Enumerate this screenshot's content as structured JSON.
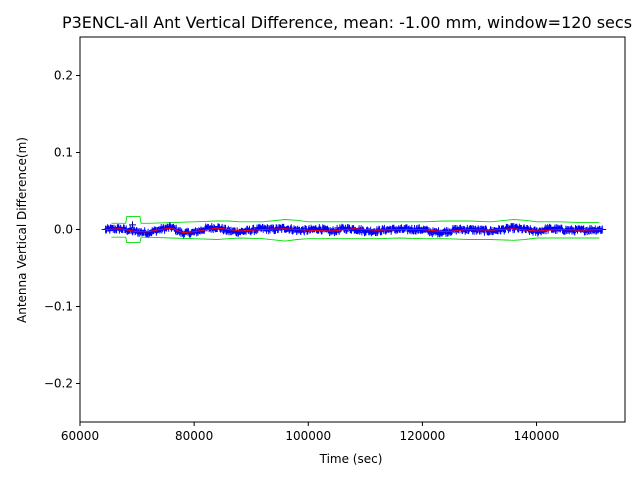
{
  "chart_data": {
    "type": "line",
    "title": "P3ENCL-all Ant Vertical Difference, mean: -1.00 mm, window=120 secs",
    "xlabel": "Time (sec)",
    "ylabel": "Antenna Vertical Difference(m)",
    "xlim": [
      60000,
      155500
    ],
    "ylim": [
      -0.25,
      0.25
    ],
    "xticks": [
      60000,
      80000,
      100000,
      120000,
      140000
    ],
    "xtick_labels": [
      "60000",
      "80000",
      "100000",
      "120000",
      "140000"
    ],
    "yticks": [
      0.2,
      0.1,
      0.0,
      -0.1,
      -0.2
    ],
    "ytick_labels": [
      "0.2",
      "0.1",
      "0.0",
      "−0.1",
      "−0.2"
    ],
    "grid": false,
    "legend": "none",
    "series": [
      {
        "kind": "measurements",
        "color": "#0000ff",
        "marker": "+",
        "x_range": [
          64500,
          151500
        ],
        "values_approx": {
          "x": [
            64500,
            67000,
            70000,
            72000,
            74000,
            76000,
            78000,
            80000,
            82000,
            84000,
            86000,
            88000,
            90000,
            92000,
            94000,
            96000,
            98000,
            100000,
            102000,
            104000,
            106000,
            108000,
            110000,
            112000,
            114000,
            116000,
            118000,
            120000,
            122000,
            124000,
            126000,
            128000,
            130000,
            132000,
            134000,
            136000,
            138000,
            140000,
            142000,
            144000,
            146000,
            148000,
            150000,
            151500
          ],
          "y": [
            0.0,
            0.001,
            -0.003,
            -0.004,
            0.0,
            0.003,
            -0.005,
            -0.004,
            0.001,
            0.003,
            -0.002,
            -0.003,
            -0.001,
            0.001,
            0.0,
            0.002,
            -0.001,
            -0.001,
            0.001,
            -0.003,
            0.001,
            0.001,
            -0.002,
            -0.002,
            0.0,
            0.0,
            0.0,
            0.0,
            -0.004,
            -0.003,
            0.0,
            0.0,
            -0.001,
            -0.002,
            0.0,
            0.002,
            0.0,
            -0.003,
            0.001,
            0.0,
            -0.001,
            -0.001,
            0.0,
            0.0
          ]
        },
        "outliers": [
          {
            "x": 69200,
            "y": 0.006
          }
        ]
      },
      {
        "kind": "moving-mean",
        "color": "#ff0000",
        "x": [
          64500,
          67000,
          70000,
          72000,
          74000,
          76000,
          78000,
          80000,
          84000,
          88000,
          92000,
          96000,
          100000,
          104000,
          108000,
          112000,
          116000,
          120000,
          124000,
          128000,
          132000,
          136000,
          140000,
          144000,
          148000,
          151500
        ],
        "y": [
          0.0,
          0.001,
          -0.003,
          -0.003,
          0.0,
          0.002,
          -0.004,
          -0.003,
          0.002,
          -0.002,
          0.0,
          0.001,
          -0.001,
          -0.002,
          0.001,
          -0.001,
          0.0,
          0.0,
          -0.003,
          0.0,
          -0.001,
          0.001,
          -0.002,
          0.0,
          -0.001,
          0.0
        ]
      },
      {
        "kind": "upper-envelope",
        "color": "#00e000",
        "x": [
          65500,
          68000,
          68200,
          70500,
          70700,
          72000,
          76000,
          80000,
          84000,
          86000,
          88000,
          92000,
          96000,
          98000,
          100000,
          104000,
          108000,
          112000,
          116000,
          120000,
          124000,
          128000,
          132000,
          136000,
          138000,
          140000,
          144000,
          148000,
          151000
        ],
        "y": [
          0.008,
          0.008,
          0.017,
          0.017,
          0.008,
          0.008,
          0.009,
          0.01,
          0.011,
          0.011,
          0.01,
          0.01,
          0.013,
          0.012,
          0.01,
          0.01,
          0.01,
          0.01,
          0.01,
          0.01,
          0.011,
          0.011,
          0.01,
          0.013,
          0.012,
          0.01,
          0.01,
          0.009,
          0.009
        ]
      },
      {
        "kind": "lower-envelope",
        "color": "#00e000",
        "x": [
          65500,
          68000,
          68200,
          70500,
          70700,
          72000,
          76000,
          80000,
          84000,
          86000,
          88000,
          92000,
          96000,
          98000,
          100000,
          104000,
          108000,
          112000,
          116000,
          120000,
          124000,
          128000,
          132000,
          136000,
          138000,
          140000,
          144000,
          148000,
          151000
        ],
        "y": [
          -0.01,
          -0.01,
          -0.017,
          -0.017,
          -0.01,
          -0.01,
          -0.011,
          -0.012,
          -0.013,
          -0.012,
          -0.011,
          -0.012,
          -0.015,
          -0.013,
          -0.012,
          -0.012,
          -0.012,
          -0.012,
          -0.011,
          -0.012,
          -0.012,
          -0.013,
          -0.013,
          -0.014,
          -0.013,
          -0.011,
          -0.011,
          -0.011,
          -0.011
        ]
      }
    ]
  }
}
